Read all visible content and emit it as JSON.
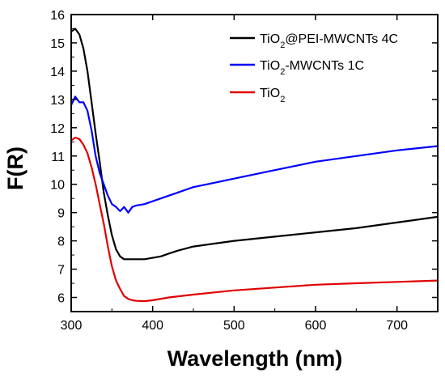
{
  "chart_data": {
    "type": "line",
    "xlabel": "Wavelength (nm)",
    "ylabel": "F(R)",
    "xlim": [
      300,
      750
    ],
    "ylim": [
      5.5,
      16
    ],
    "xticks": [
      300,
      400,
      500,
      600,
      700
    ],
    "yticks": [
      6,
      7,
      8,
      9,
      10,
      11,
      12,
      13,
      14,
      15,
      16
    ],
    "grid": false,
    "legend_position": "top-right",
    "series": [
      {
        "name": "TiO2@PEI-MWCNTs 4C",
        "color": "#000000",
        "x": [
          300,
          305,
          310,
          315,
          320,
          325,
          330,
          335,
          340,
          345,
          350,
          355,
          360,
          365,
          370,
          380,
          390,
          400,
          410,
          420,
          430,
          450,
          500,
          550,
          600,
          650,
          700,
          750
        ],
        "y": [
          15.4,
          15.5,
          15.3,
          14.8,
          14.0,
          12.9,
          11.8,
          10.8,
          9.7,
          8.9,
          8.2,
          7.7,
          7.45,
          7.35,
          7.35,
          7.35,
          7.35,
          7.4,
          7.45,
          7.55,
          7.65,
          7.8,
          8.0,
          8.15,
          8.3,
          8.45,
          8.65,
          8.85
        ]
      },
      {
        "name": "TiO2-MWCNTs 1C",
        "color": "#0000ff",
        "x": [
          300,
          305,
          310,
          315,
          320,
          325,
          330,
          335,
          340,
          345,
          350,
          355,
          360,
          365,
          370,
          375,
          380,
          390,
          400,
          410,
          420,
          430,
          450,
          500,
          550,
          600,
          650,
          700,
          750
        ],
        "y": [
          12.8,
          13.1,
          12.9,
          12.9,
          12.6,
          11.9,
          11.0,
          10.4,
          10.0,
          9.6,
          9.3,
          9.2,
          9.05,
          9.2,
          9.0,
          9.2,
          9.25,
          9.3,
          9.4,
          9.5,
          9.6,
          9.7,
          9.9,
          10.2,
          10.5,
          10.8,
          11.0,
          11.2,
          11.35
        ]
      },
      {
        "name": "TiO2",
        "color": "#e00000",
        "x": [
          300,
          305,
          310,
          315,
          320,
          325,
          330,
          335,
          340,
          345,
          350,
          355,
          360,
          365,
          370,
          375,
          380,
          390,
          400,
          420,
          450,
          500,
          550,
          600,
          650,
          700,
          750
        ],
        "y": [
          11.55,
          11.65,
          11.6,
          11.4,
          11.1,
          10.6,
          10.0,
          9.3,
          8.6,
          7.8,
          7.1,
          6.6,
          6.3,
          6.05,
          5.95,
          5.9,
          5.88,
          5.87,
          5.9,
          6.0,
          6.1,
          6.25,
          6.35,
          6.45,
          6.5,
          6.55,
          6.6
        ]
      }
    ],
    "legend_labels": [
      {
        "main": "TiO",
        "sub": "2",
        "tail": "@PEI-MWCNTs 4C"
      },
      {
        "main": "TiO",
        "sub": "2",
        "tail": "-MWCNTs 1C"
      },
      {
        "main": "TiO",
        "sub": "2",
        "tail": ""
      }
    ]
  }
}
